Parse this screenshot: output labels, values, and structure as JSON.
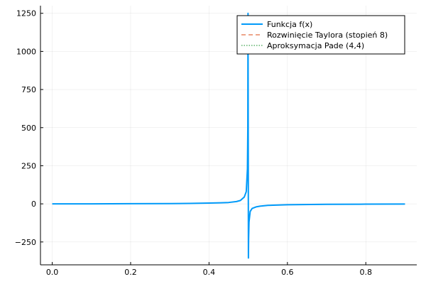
{
  "chart_data": {
    "type": "line",
    "title": "",
    "xlabel": "",
    "ylabel": "",
    "xlim": [
      -0.03,
      0.93
    ],
    "ylim": [
      -400,
      1300
    ],
    "xticks": [
      0.0,
      0.2,
      0.4,
      0.6,
      0.8
    ],
    "xtick_labels": [
      "0.0",
      "0.2",
      "0.4",
      "0.6",
      "0.8"
    ],
    "yticks": [
      -250,
      0,
      250,
      500,
      750,
      1000,
      1250
    ],
    "ytick_labels": [
      "−250",
      "0",
      "250",
      "500",
      "750",
      "1000",
      "1250"
    ],
    "grid": true,
    "legend_position": "top-right",
    "series": [
      {
        "name": "Funkcja f(x)",
        "color": "#009af9",
        "style": "solid",
        "x": [
          0.0,
          0.1,
          0.2,
          0.3,
          0.35,
          0.4,
          0.43,
          0.45,
          0.47,
          0.48,
          0.49,
          0.495,
          0.498,
          0.499,
          0.4995,
          0.5005,
          0.501,
          0.502,
          0.505,
          0.51,
          0.52,
          0.53,
          0.55,
          0.6,
          0.7,
          0.8,
          0.9
        ],
        "y": [
          0,
          0,
          1,
          2,
          3,
          5,
          7,
          9,
          15,
          22,
          45,
          80,
          230,
          500,
          1250,
          -355,
          -230,
          -120,
          -50,
          -30,
          -20,
          -15,
          -10,
          -6,
          -3,
          -2,
          -1
        ]
      },
      {
        "name": "Rozwinięcie Taylora (stopień 8)",
        "color": "#e26f46",
        "style": "dashed",
        "x": [],
        "y": []
      },
      {
        "name": "Aproksymacja Pade (4,4)",
        "color": "#3da44d",
        "style": "dotted",
        "x": [],
        "y": []
      }
    ]
  }
}
